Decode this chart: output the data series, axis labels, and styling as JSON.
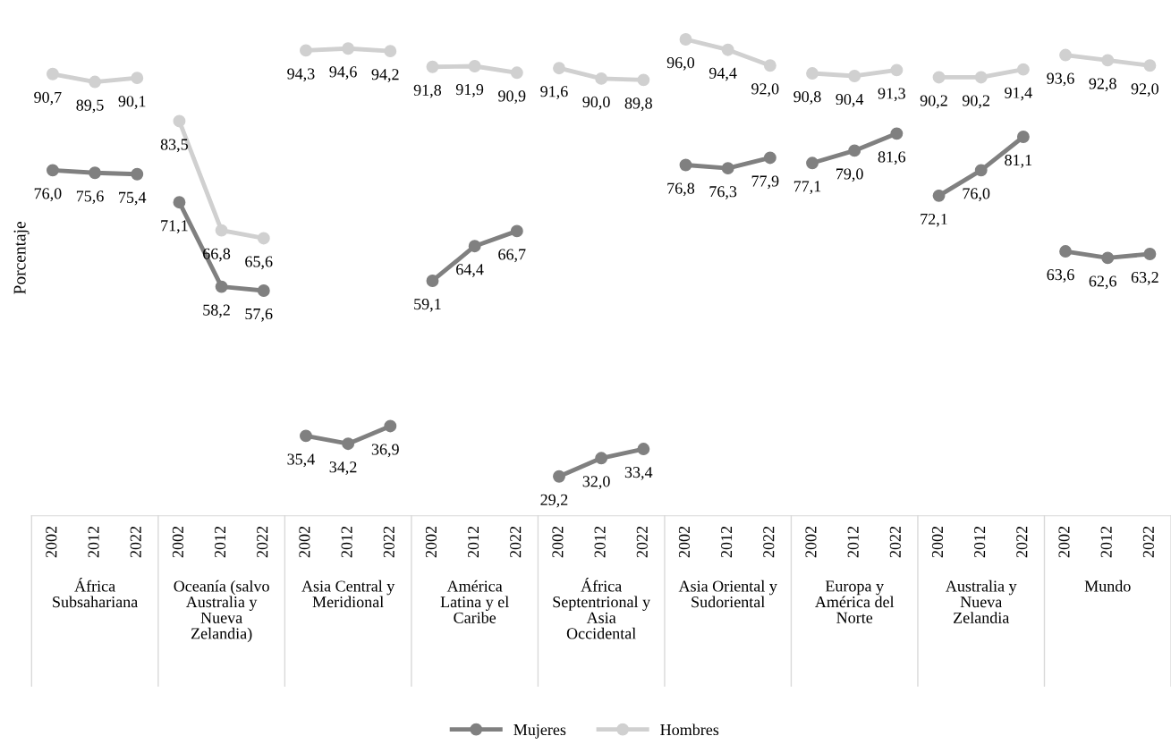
{
  "chart_data": {
    "type": "line",
    "ylabel": "Porcentaje",
    "categories": [
      "2002",
      "2012",
      "2022",
      "2002",
      "2012",
      "2022",
      "2002",
      "2012",
      "2022",
      "2002",
      "2012",
      "2022",
      "2002",
      "2012",
      "2022",
      "2002",
      "2012",
      "2022",
      "2002",
      "2012",
      "2022",
      "2002",
      "2012",
      "2022",
      "2002",
      "2012",
      "2022"
    ],
    "annotations": [
      "África\nSubsahariana",
      "Oceanía (salvo\nAustralia y\nNueva\nZelandia)",
      "Asia Central y\nMeridional",
      "América\nLatina y el\nCaribe",
      "África\nSeptentrional y\nAsia\nOccidental",
      "Asia Oriental y\nSudoriental",
      "Europa y\nAmérica del\nNorte",
      "Australia y\nNueva\nZelandia",
      "Mundo"
    ],
    "series": [
      {
        "name": "Mujeres",
        "color": "#808080",
        "values": [
          76.0,
          75.6,
          75.4,
          71.1,
          58.2,
          57.6,
          35.4,
          34.2,
          36.9,
          59.1,
          64.4,
          66.7,
          29.2,
          32.0,
          33.4,
          76.8,
          76.3,
          77.9,
          77.1,
          79.0,
          81.6,
          72.1,
          76.0,
          81.1,
          63.6,
          62.6,
          63.2
        ],
        "value_labels": [
          "76,0",
          "75,6",
          "75,4",
          "71,1",
          "58,2",
          "57,6",
          "35,4",
          "34,2",
          "36,9",
          "59,1",
          "64,4",
          "66,7",
          "29,2",
          "32,0",
          "33,4",
          "76,8",
          "76,3",
          "77,9",
          "77,1",
          "79,0",
          "81,6",
          "72,1",
          "76,0",
          "81,1",
          "63,6",
          "62,6",
          "63,2"
        ]
      },
      {
        "name": "Hombres",
        "color": "#d0d0d0",
        "values": [
          90.7,
          89.5,
          90.1,
          83.5,
          66.8,
          65.6,
          94.3,
          94.6,
          94.2,
          91.8,
          91.9,
          90.9,
          91.6,
          90.0,
          89.8,
          96.0,
          94.4,
          92.0,
          90.8,
          90.4,
          91.3,
          90.2,
          90.2,
          91.4,
          93.6,
          92.8,
          92.0
        ],
        "value_labels": [
          "90,7",
          "89,5",
          "90,1",
          "83,5",
          "66,8",
          "65,6",
          "94,3",
          "94,6",
          "94,2",
          "91,8",
          "91,9",
          "90,9",
          "91,6",
          "90,0",
          "89,8",
          "96,0",
          "94,4",
          "92,0",
          "90,8",
          "90,4",
          "91,3",
          "90,2",
          "90,2",
          "91,4",
          "93,6",
          "92,8",
          "92,0"
        ]
      }
    ],
    "legend": "bottom",
    "marker": "circle",
    "line_style": "solid",
    "grid": false
  }
}
